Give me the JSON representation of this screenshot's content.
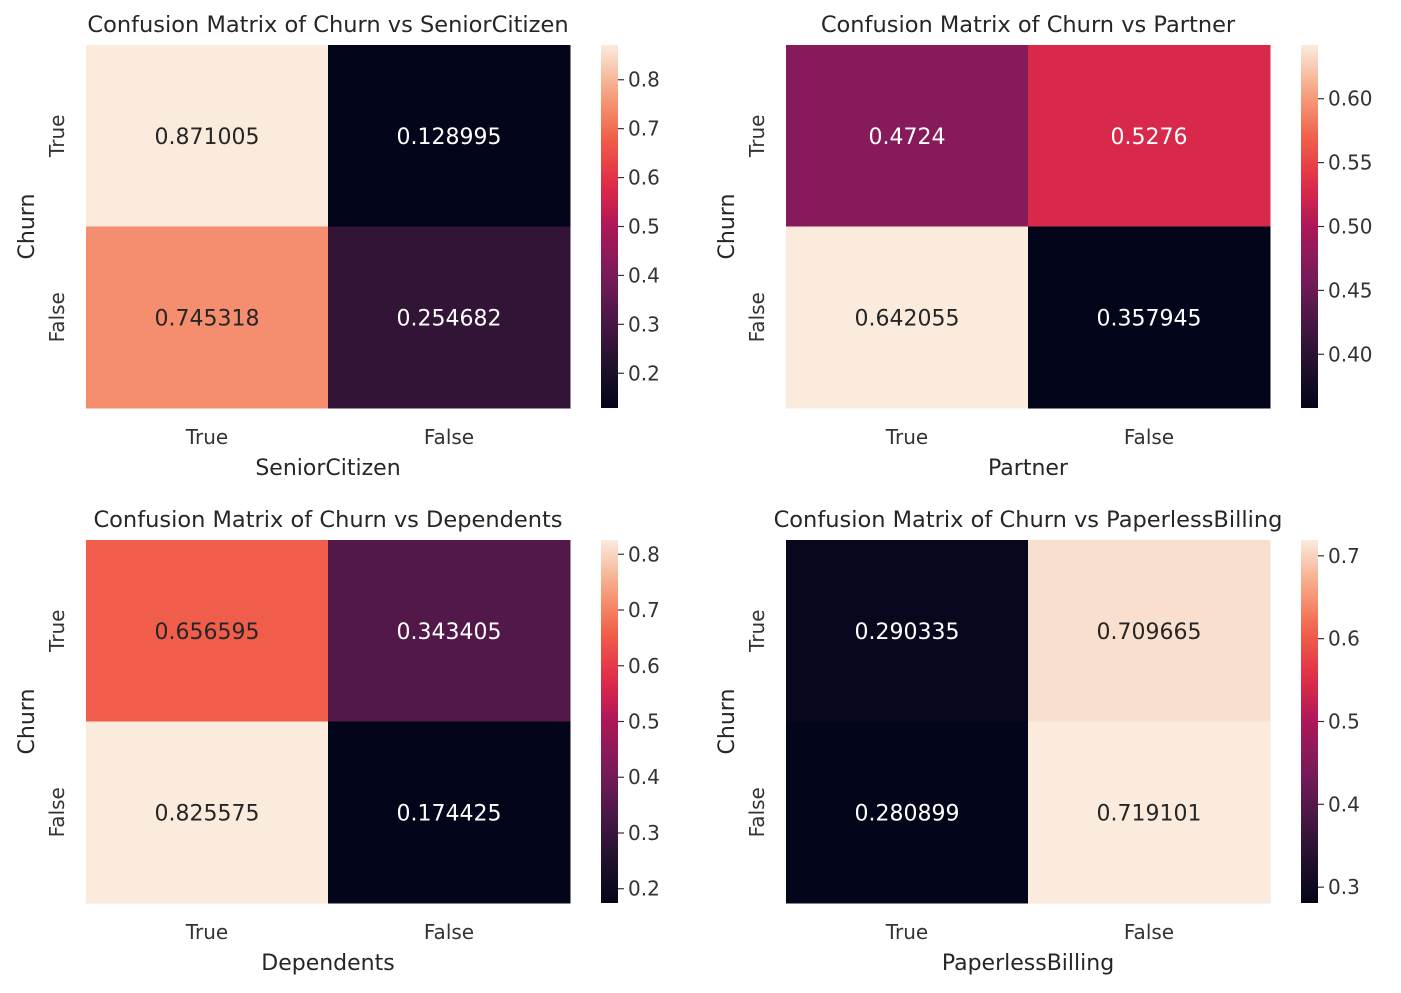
{
  "chart_data": [
    {
      "type": "heatmap",
      "title": "Confusion Matrix of Churn vs SeniorCitizen",
      "xlabel": "SeniorCitizen",
      "ylabel": "Churn",
      "x_categories": [
        "True",
        "False"
      ],
      "y_categories": [
        "True",
        "False"
      ],
      "values": [
        [
          0.871005,
          0.128995
        ],
        [
          0.745318,
          0.254682
        ]
      ],
      "value_labels": [
        [
          "0.871005",
          "0.128995"
        ],
        [
          "0.745318",
          "0.254682"
        ]
      ],
      "colorbar": {
        "min": 0.128995,
        "max": 0.871005,
        "ticks": [
          "0.2",
          "0.3",
          "0.4",
          "0.5",
          "0.6",
          "0.7",
          "0.8"
        ]
      }
    },
    {
      "type": "heatmap",
      "title": "Confusion Matrix of Churn vs Partner",
      "xlabel": "Partner",
      "ylabel": "Churn",
      "x_categories": [
        "True",
        "False"
      ],
      "y_categories": [
        "True",
        "False"
      ],
      "values": [
        [
          0.4724,
          0.5276
        ],
        [
          0.642055,
          0.357945
        ]
      ],
      "value_labels": [
        [
          "0.4724",
          "0.5276"
        ],
        [
          "0.642055",
          "0.357945"
        ]
      ],
      "colorbar": {
        "min": 0.357945,
        "max": 0.642055,
        "ticks": [
          "0.40",
          "0.45",
          "0.50",
          "0.55",
          "0.60"
        ]
      }
    },
    {
      "type": "heatmap",
      "title": "Confusion Matrix of Churn vs Dependents",
      "xlabel": "Dependents",
      "ylabel": "Churn",
      "x_categories": [
        "True",
        "False"
      ],
      "y_categories": [
        "True",
        "False"
      ],
      "values": [
        [
          0.656595,
          0.343405
        ],
        [
          0.825575,
          0.174425
        ]
      ],
      "value_labels": [
        [
          "0.656595",
          "0.343405"
        ],
        [
          "0.825575",
          "0.174425"
        ]
      ],
      "colorbar": {
        "min": 0.174425,
        "max": 0.825575,
        "ticks": [
          "0.2",
          "0.3",
          "0.4",
          "0.5",
          "0.6",
          "0.7",
          "0.8"
        ]
      }
    },
    {
      "type": "heatmap",
      "title": "Confusion Matrix of Churn vs PaperlessBilling",
      "xlabel": "PaperlessBilling",
      "ylabel": "Churn",
      "x_categories": [
        "True",
        "False"
      ],
      "y_categories": [
        "True",
        "False"
      ],
      "values": [
        [
          0.290335,
          0.709665
        ],
        [
          0.280899,
          0.719101
        ]
      ],
      "value_labels": [
        [
          "0.290335",
          "0.709665"
        ],
        [
          "0.280899",
          "0.719101"
        ]
      ],
      "colorbar": {
        "min": 0.280899,
        "max": 0.719101,
        "ticks": [
          "0.3",
          "0.4",
          "0.5",
          "0.6",
          "0.7"
        ]
      }
    }
  ],
  "colormap": "rocket",
  "colors": {
    "text_dark": "#262626",
    "text_light": "#ffffff",
    "tick": "#333333"
  }
}
